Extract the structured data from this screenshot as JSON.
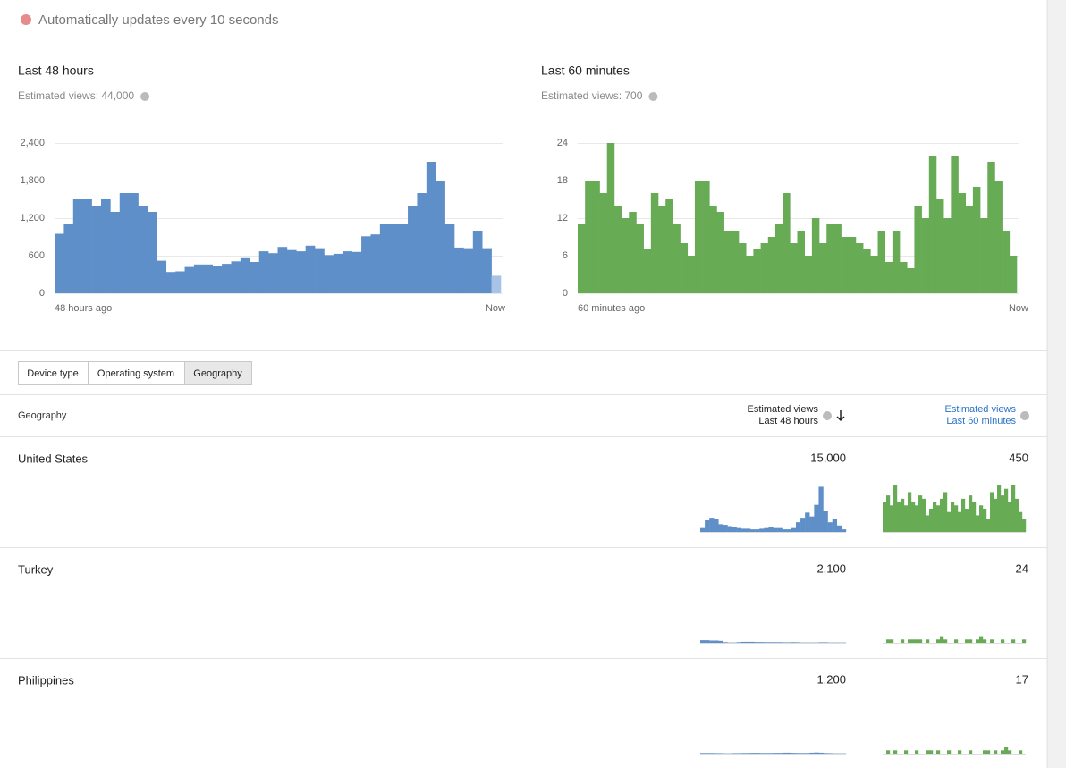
{
  "status": "Automatically updates every 10 seconds",
  "chart_data": [
    {
      "type": "bar",
      "title": "Last 48 hours",
      "subtitle": "Estimated views: 44,000",
      "x_labels": [
        "48 hours ago",
        "Now"
      ],
      "values": [
        950,
        1100,
        1500,
        1500,
        1400,
        1500,
        1300,
        1600,
        1600,
        1400,
        1300,
        520,
        340,
        350,
        420,
        460,
        460,
        440,
        470,
        510,
        560,
        500,
        670,
        640,
        740,
        690,
        670,
        760,
        720,
        610,
        630,
        670,
        660,
        910,
        940,
        1100,
        1100,
        1100,
        1400,
        1600,
        2100,
        1800,
        1100,
        730,
        720,
        1000,
        720,
        280
      ],
      "color": "#5e8fc9",
      "partial_color": "#a9c3e6",
      "ylim": [
        0,
        2400
      ],
      "yticks": [
        0,
        600,
        {
          "value": 1200,
          "label": "1,200"
        },
        {
          "value": 1800,
          "label": "1,800"
        },
        {
          "value": 2400,
          "label": "2,400"
        }
      ],
      "grid": true
    },
    {
      "type": "bar",
      "title": "Last 60 minutes",
      "subtitle": "Estimated views: 700",
      "x_labels": [
        "60 minutes ago",
        "Now"
      ],
      "values": [
        11,
        18,
        18,
        16,
        24,
        14,
        12,
        13,
        11,
        7,
        16,
        14,
        15,
        11,
        8,
        6,
        18,
        18,
        14,
        13,
        10,
        10,
        8,
        6,
        7,
        8,
        9,
        11,
        16,
        8,
        10,
        6,
        12,
        8,
        11,
        11,
        9,
        9,
        8,
        7,
        6,
        10,
        5,
        10,
        5,
        4,
        14,
        12,
        22,
        15,
        12,
        22,
        16,
        14,
        17,
        12,
        21,
        18,
        10,
        6
      ],
      "color": "#67ab55",
      "ylim": [
        0,
        24
      ],
      "yticks": [
        0,
        6,
        12,
        18,
        24
      ],
      "grid": true
    }
  ],
  "tabs": [
    "Device type",
    "Operating system",
    "Geography"
  ],
  "selected_tab": 2,
  "table": {
    "header": {
      "name": "Geography",
      "col_48h": {
        "title": "Estimated views",
        "subtitle": "Last 48 hours"
      },
      "col_60m": {
        "title": "Estimated views",
        "subtitle": "Last 60 minutes"
      }
    },
    "spark_48h_ylim": [
      0,
      720
    ],
    "spark_60m_ylim": [
      0,
      14
    ],
    "rows": [
      {
        "name": "United States",
        "views_48h": "15,000",
        "views_60m": "450",
        "spark_48h": [
          60,
          180,
          220,
          200,
          120,
          110,
          90,
          70,
          60,
          50,
          50,
          40,
          40,
          50,
          60,
          70,
          60,
          60,
          40,
          40,
          60,
          150,
          220,
          300,
          240,
          420,
          700,
          320,
          150,
          200,
          100,
          40
        ],
        "spark_60m": [
          9,
          11,
          8,
          14,
          9,
          10,
          8,
          12,
          9,
          8,
          11,
          10,
          5,
          7,
          9,
          8,
          10,
          12,
          6,
          9,
          8,
          6,
          10,
          7,
          11,
          9,
          5,
          8,
          7,
          4,
          12,
          10,
          14,
          11,
          13,
          9,
          14,
          10,
          6,
          4
        ]
      },
      {
        "name": "Turkey",
        "views_48h": "2,100",
        "views_60m": "24",
        "spark_48h": [
          40,
          40,
          35,
          35,
          30,
          10,
          5,
          5,
          10,
          15,
          15,
          15,
          12,
          12,
          10,
          10,
          10,
          10,
          8,
          8,
          10,
          8,
          5,
          5,
          5,
          5,
          8,
          8,
          5,
          5,
          5,
          5
        ],
        "spark_60m": [
          0,
          1,
          1,
          0,
          0,
          1,
          0,
          1,
          1,
          1,
          1,
          0,
          1,
          0,
          0,
          1,
          2,
          1,
          0,
          0,
          1,
          0,
          0,
          1,
          1,
          0,
          1,
          2,
          1,
          0,
          1,
          0,
          0,
          1,
          0,
          0,
          1,
          0,
          0,
          1
        ]
      },
      {
        "name": "Philippines",
        "views_48h": "1,200",
        "views_60m": "17",
        "spark_48h": [
          10,
          10,
          10,
          8,
          8,
          5,
          5,
          8,
          8,
          10,
          10,
          12,
          12,
          10,
          10,
          10,
          12,
          12,
          15,
          15,
          12,
          10,
          10,
          10,
          15,
          18,
          15,
          10,
          8,
          5,
          5,
          5
        ],
        "spark_60m": [
          0,
          1,
          0,
          1,
          0,
          0,
          1,
          0,
          0,
          1,
          0,
          0,
          1,
          1,
          0,
          1,
          0,
          0,
          1,
          0,
          0,
          1,
          0,
          0,
          1,
          0,
          0,
          0,
          1,
          1,
          0,
          1,
          0,
          1,
          2,
          1,
          0,
          0,
          1,
          0
        ]
      }
    ]
  }
}
